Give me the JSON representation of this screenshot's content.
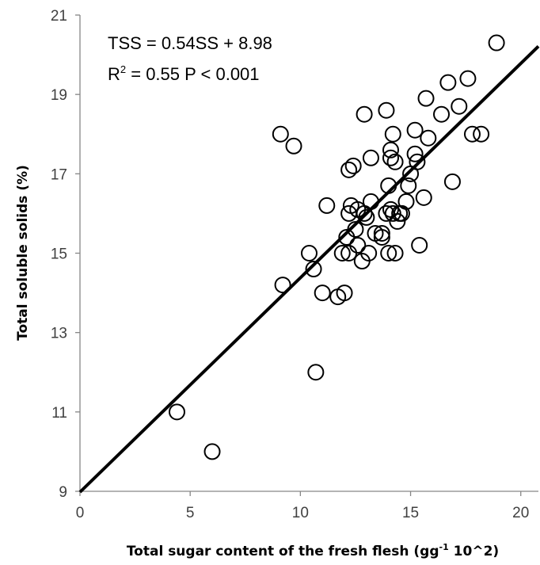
{
  "chart_data": {
    "type": "scatter",
    "xlabel_main": "Total sugar content of the fresh flesh (gg",
    "xlabel_sup": "-1",
    "xlabel_tail": " 10^2)",
    "ylabel": "Total soluble solids (%)",
    "xlim": [
      0,
      20.8
    ],
    "ylim": [
      9,
      21
    ],
    "xticks": [
      "0",
      "5",
      "10",
      "15",
      "20"
    ],
    "xtick_values": [
      0,
      5,
      10,
      15,
      20
    ],
    "yticks": [
      "9",
      "11",
      "13",
      "15",
      "17",
      "19",
      "21"
    ],
    "ytick_values": [
      9,
      11,
      13,
      15,
      17,
      19,
      21
    ],
    "annotation_line1": "TSS = 0.54SS + 8.98",
    "annotation_line2_R": "R",
    "annotation_line2_sup": "2",
    "annotation_line2_rest": " = 0.55 P < 0.001",
    "regression": {
      "slope": 0.54,
      "intercept": 8.98
    },
    "marker": "open-circle",
    "points": [
      [
        4.4,
        11.0
      ],
      [
        6.0,
        10.0
      ],
      [
        9.1,
        18.0
      ],
      [
        9.2,
        14.2
      ],
      [
        9.7,
        17.7
      ],
      [
        10.4,
        15.0
      ],
      [
        10.6,
        14.6
      ],
      [
        10.7,
        12.0
      ],
      [
        11.0,
        14.0
      ],
      [
        11.2,
        16.2
      ],
      [
        11.7,
        13.9
      ],
      [
        11.9,
        15.0
      ],
      [
        12.0,
        14.0
      ],
      [
        12.1,
        15.4
      ],
      [
        12.2,
        17.1
      ],
      [
        12.2,
        15.0
      ],
      [
        12.2,
        16.0
      ],
      [
        12.3,
        16.2
      ],
      [
        12.4,
        17.2
      ],
      [
        12.5,
        15.6
      ],
      [
        12.6,
        15.2
      ],
      [
        12.6,
        16.1
      ],
      [
        12.8,
        14.8
      ],
      [
        12.9,
        18.5
      ],
      [
        12.9,
        16.0
      ],
      [
        13.0,
        15.9
      ],
      [
        13.1,
        15.0
      ],
      [
        13.2,
        16.3
      ],
      [
        13.2,
        17.4
      ],
      [
        13.4,
        15.5
      ],
      [
        13.7,
        15.4
      ],
      [
        13.7,
        15.5
      ],
      [
        13.9,
        18.6
      ],
      [
        13.9,
        16.0
      ],
      [
        14.0,
        15.0
      ],
      [
        14.0,
        16.7
      ],
      [
        14.1,
        17.6
      ],
      [
        14.1,
        17.4
      ],
      [
        14.1,
        16.1
      ],
      [
        14.2,
        18.0
      ],
      [
        14.2,
        16.0
      ],
      [
        14.3,
        15.0
      ],
      [
        14.3,
        17.3
      ],
      [
        14.4,
        15.8
      ],
      [
        14.5,
        16.0
      ],
      [
        14.6,
        16.0
      ],
      [
        14.8,
        16.3
      ],
      [
        14.9,
        16.7
      ],
      [
        15.0,
        17.0
      ],
      [
        15.2,
        18.1
      ],
      [
        15.2,
        17.5
      ],
      [
        15.3,
        17.3
      ],
      [
        15.4,
        15.2
      ],
      [
        15.6,
        16.4
      ],
      [
        15.7,
        18.9
      ],
      [
        15.8,
        17.9
      ],
      [
        16.4,
        18.5
      ],
      [
        16.7,
        19.3
      ],
      [
        16.9,
        16.8
      ],
      [
        17.2,
        18.7
      ],
      [
        17.6,
        19.4
      ],
      [
        17.8,
        18.0
      ],
      [
        18.2,
        18.0
      ],
      [
        18.9,
        20.3
      ]
    ]
  }
}
